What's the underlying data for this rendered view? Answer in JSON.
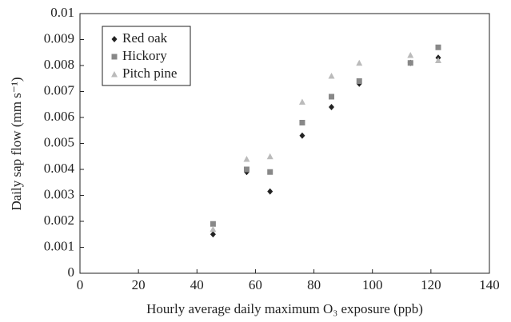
{
  "chart_data": {
    "type": "scatter",
    "x_label": "Hourly average daily maximum O₃ exposure (ppb)",
    "y_label": "Daily sap flow (mm s⁻¹)",
    "x": [
      45.5,
      57,
      65,
      76,
      86,
      95.5,
      113,
      122.5
    ],
    "series": [
      {
        "name": "Red oak",
        "color": "#222222",
        "marker": "diamond",
        "values": [
          0.0015,
          0.0039,
          0.00315,
          0.0053,
          0.0064,
          0.0073,
          0.0081,
          0.0083
        ]
      },
      {
        "name": "Hickory",
        "color": "#888888",
        "marker": "square",
        "values": [
          0.0019,
          0.004,
          0.0039,
          0.0058,
          0.0068,
          0.0074,
          0.0081,
          0.0087
        ]
      },
      {
        "name": "Pitch pine",
        "color": "#bbbbbb",
        "marker": "triangle",
        "values": [
          0.0017,
          0.0044,
          0.0045,
          0.0066,
          0.0076,
          0.0081,
          0.0084,
          0.0082
        ]
      }
    ],
    "xlim": [
      0,
      140
    ],
    "xticks": [
      0,
      20,
      40,
      60,
      80,
      100,
      120,
      140
    ],
    "ylim": [
      0,
      0.01
    ],
    "yticks": [
      0,
      0.001,
      0.002,
      0.003,
      0.004,
      0.005,
      0.006,
      0.007,
      0.008,
      0.009,
      0.01
    ],
    "legend": "top-left"
  }
}
